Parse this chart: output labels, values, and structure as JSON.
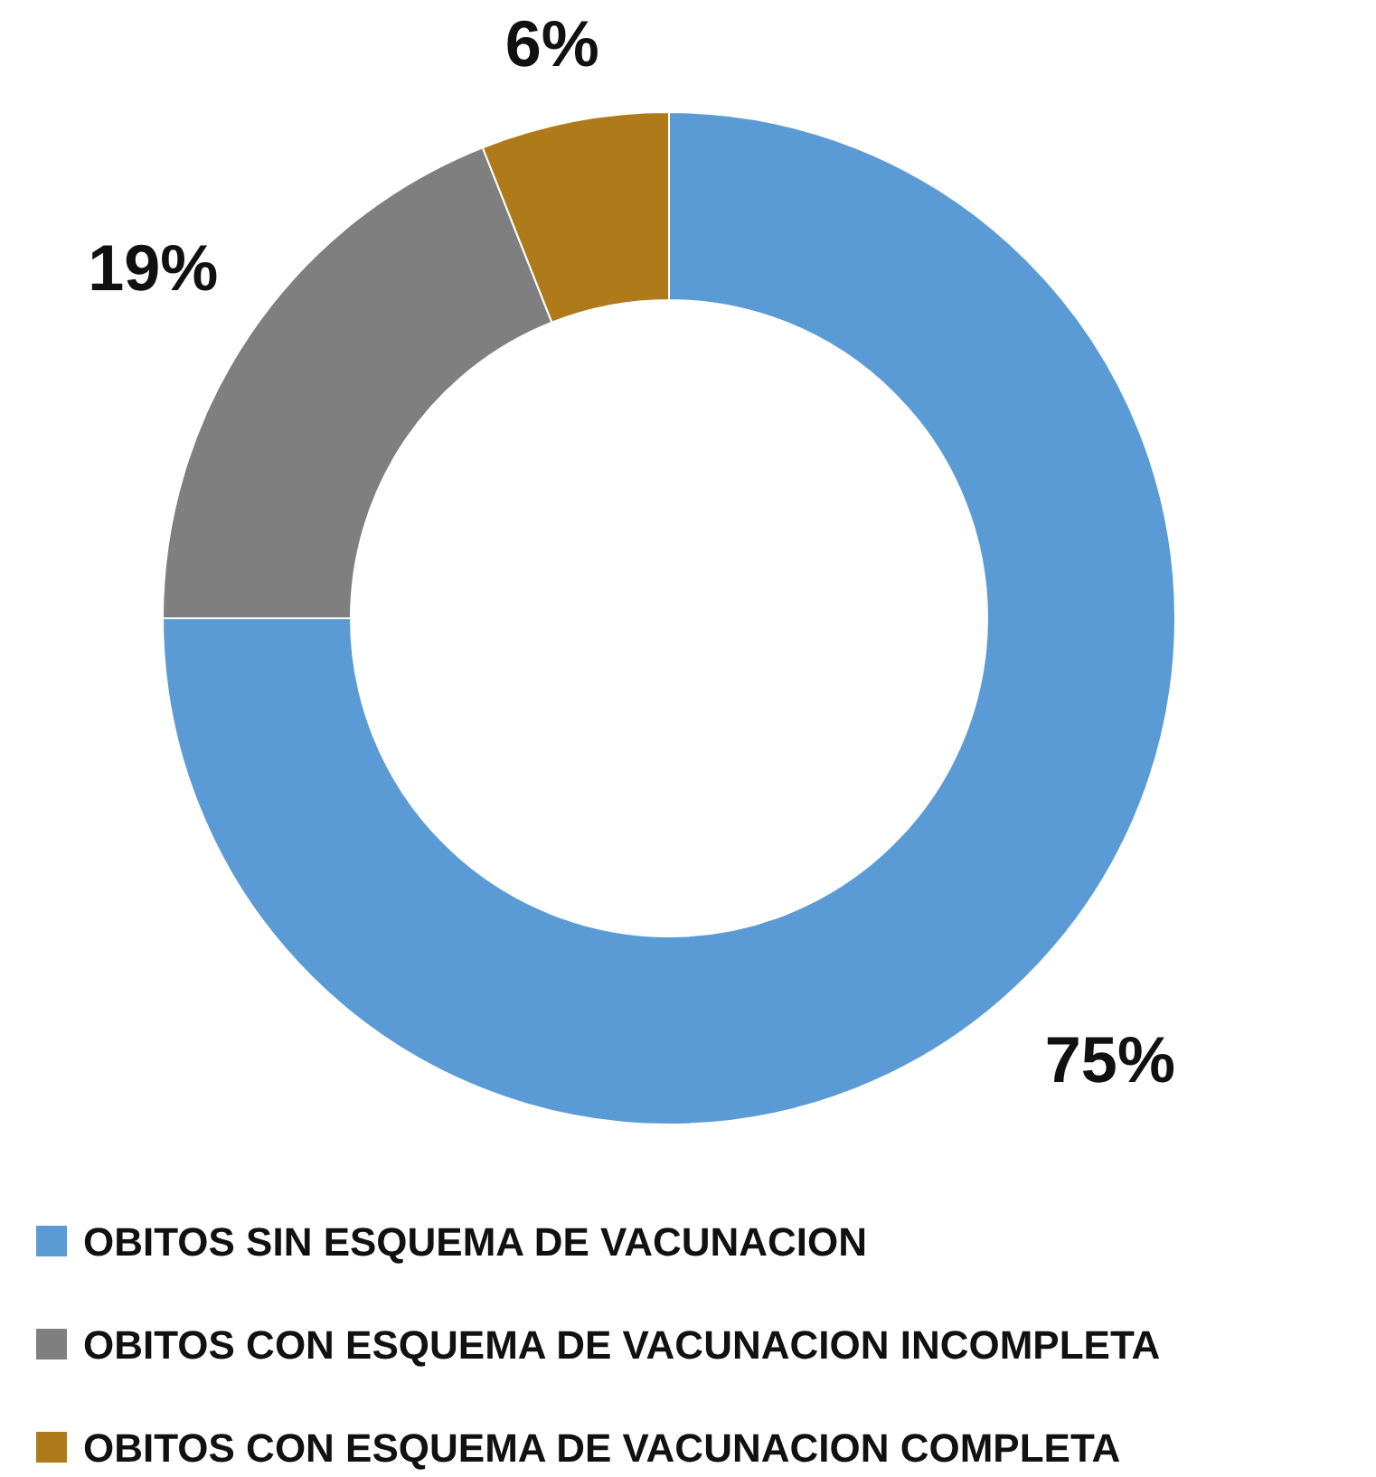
{
  "chart_data": {
    "type": "donut",
    "categories": [
      "OBITOS SIN ESQUEMA DE VACUNACION",
      "OBITOS CON ESQUEMA DE VACUNACION INCOMPLETA",
      "OBITOS CON ESQUEMA DE VACUNACION COMPLETA"
    ],
    "values": [
      75,
      19,
      6
    ],
    "colors": [
      "#5b9bd5",
      "#7f7f7f",
      "#ae7a1a"
    ],
    "value_labels": [
      "75%",
      "19%",
      "6%"
    ],
    "legend": "bottom"
  }
}
